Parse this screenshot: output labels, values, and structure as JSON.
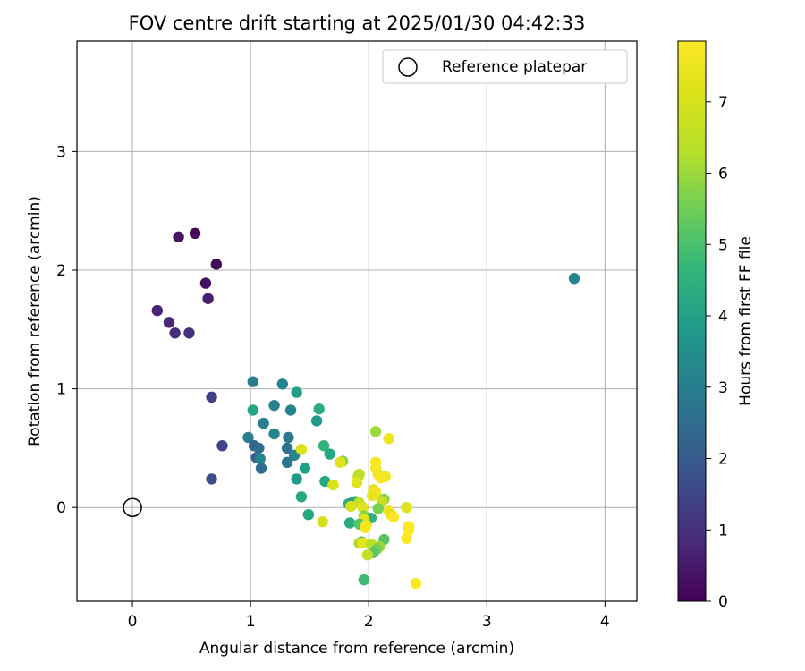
{
  "chart_data": {
    "type": "scatter",
    "title": "FOV centre drift starting at 2025/01/30 04:42:33",
    "xlabel": "Angular distance from reference (arcmin)",
    "ylabel": "Rotation from reference (arcmin)",
    "xlim": [
      -0.47,
      4.27
    ],
    "ylim": [
      -0.79,
      3.93
    ],
    "xticks": [
      0,
      1,
      2,
      3,
      4
    ],
    "yticks": [
      0,
      1,
      2,
      3
    ],
    "grid": true,
    "legend": {
      "placement": "top-right",
      "entries": [
        "Reference platepar"
      ]
    },
    "reference_point": {
      "name": "Reference platepar",
      "x": 0,
      "y": 0
    },
    "colorbar": {
      "label": "Hours from first FF file",
      "colormap": "viridis",
      "min": 0,
      "max": 7.85,
      "ticks": [
        0,
        1,
        2,
        3,
        4,
        5,
        6,
        7
      ]
    },
    "points": [
      {
        "x": 0.53,
        "y": 2.31,
        "c": 0.1
      },
      {
        "x": 0.39,
        "y": 2.28,
        "c": 0.4
      },
      {
        "x": 0.71,
        "y": 2.05,
        "c": 0.2
      },
      {
        "x": 0.62,
        "y": 1.89,
        "c": 0.3
      },
      {
        "x": 0.64,
        "y": 1.76,
        "c": 0.6
      },
      {
        "x": 0.21,
        "y": 1.66,
        "c": 0.7
      },
      {
        "x": 0.31,
        "y": 1.56,
        "c": 0.8
      },
      {
        "x": 0.36,
        "y": 1.47,
        "c": 0.9
      },
      {
        "x": 0.48,
        "y": 1.47,
        "c": 1.0
      },
      {
        "x": 0.67,
        "y": 0.93,
        "c": 1.4
      },
      {
        "x": 0.76,
        "y": 0.52,
        "c": 1.5
      },
      {
        "x": 0.67,
        "y": 0.24,
        "c": 1.7
      },
      {
        "x": 3.74,
        "y": 1.93,
        "c": 3.2
      },
      {
        "x": 1.02,
        "y": 1.06,
        "c": 3.0
      },
      {
        "x": 1.27,
        "y": 1.04,
        "c": 3.2
      },
      {
        "x": 1.39,
        "y": 0.97,
        "c": 4.0
      },
      {
        "x": 1.2,
        "y": 0.86,
        "c": 3.1
      },
      {
        "x": 1.34,
        "y": 0.82,
        "c": 3.2
      },
      {
        "x": 1.02,
        "y": 0.82,
        "c": 4.1
      },
      {
        "x": 1.58,
        "y": 0.83,
        "c": 4.4
      },
      {
        "x": 1.56,
        "y": 0.73,
        "c": 3.8
      },
      {
        "x": 1.11,
        "y": 0.71,
        "c": 3.0
      },
      {
        "x": 1.2,
        "y": 0.62,
        "c": 3.2
      },
      {
        "x": 0.98,
        "y": 0.59,
        "c": 3.0
      },
      {
        "x": 1.32,
        "y": 0.59,
        "c": 2.8
      },
      {
        "x": 1.03,
        "y": 0.52,
        "c": 2.3
      },
      {
        "x": 1.07,
        "y": 0.5,
        "c": 2.5
      },
      {
        "x": 1.31,
        "y": 0.5,
        "c": 2.6
      },
      {
        "x": 1.37,
        "y": 0.44,
        "c": 3.2
      },
      {
        "x": 1.05,
        "y": 0.42,
        "c": 2.1
      },
      {
        "x": 1.08,
        "y": 0.41,
        "c": 3.2
      },
      {
        "x": 1.31,
        "y": 0.38,
        "c": 2.8
      },
      {
        "x": 1.09,
        "y": 0.33,
        "c": 2.5
      },
      {
        "x": 1.46,
        "y": 0.33,
        "c": 4.0
      },
      {
        "x": 1.39,
        "y": 0.24,
        "c": 3.8
      },
      {
        "x": 1.43,
        "y": 0.09,
        "c": 4.2
      },
      {
        "x": 1.49,
        "y": -0.06,
        "c": 4.2
      },
      {
        "x": 1.62,
        "y": 0.52,
        "c": 4.6
      },
      {
        "x": 1.67,
        "y": 0.45,
        "c": 4.2
      },
      {
        "x": 1.78,
        "y": 0.39,
        "c": 5.8
      },
      {
        "x": 1.63,
        "y": 0.22,
        "c": 4.2
      },
      {
        "x": 1.43,
        "y": 0.49,
        "c": 7.1
      },
      {
        "x": 1.76,
        "y": 0.38,
        "c": 7.2
      },
      {
        "x": 1.7,
        "y": 0.19,
        "c": 7.1
      },
      {
        "x": 1.61,
        "y": -0.12,
        "c": 7.0
      },
      {
        "x": 1.91,
        "y": 0.26,
        "c": 6.7
      },
      {
        "x": 1.92,
        "y": 0.28,
        "c": 6.4
      },
      {
        "x": 1.9,
        "y": 0.21,
        "c": 7.2
      },
      {
        "x": 2.06,
        "y": 0.64,
        "c": 6.0
      },
      {
        "x": 2.17,
        "y": 0.58,
        "c": 7.5
      },
      {
        "x": 2.06,
        "y": 0.38,
        "c": 7.7
      },
      {
        "x": 2.06,
        "y": 0.33,
        "c": 7.7
      },
      {
        "x": 2.08,
        "y": 0.28,
        "c": 7.6
      },
      {
        "x": 2.14,
        "y": 0.26,
        "c": 7.5
      },
      {
        "x": 2.1,
        "y": 0.25,
        "c": 7.7
      },
      {
        "x": 2.04,
        "y": 0.15,
        "c": 7.3
      },
      {
        "x": 2.06,
        "y": 0.13,
        "c": 7.6
      },
      {
        "x": 2.03,
        "y": 0.1,
        "c": 7.4
      },
      {
        "x": 2.13,
        "y": 0.07,
        "c": 5.8
      },
      {
        "x": 2.11,
        "y": 0.05,
        "c": 6.7
      },
      {
        "x": 1.83,
        "y": 0.03,
        "c": 4.4
      },
      {
        "x": 1.86,
        "y": 0.04,
        "c": 4.0
      },
      {
        "x": 1.89,
        "y": 0.05,
        "c": 4.4
      },
      {
        "x": 1.92,
        "y": 0.04,
        "c": 6.6
      },
      {
        "x": 1.85,
        "y": 0.01,
        "c": 7.0
      },
      {
        "x": 1.95,
        "y": 0.0,
        "c": 7.3
      },
      {
        "x": 2.08,
        "y": -0.01,
        "c": 5.6
      },
      {
        "x": 2.17,
        "y": -0.03,
        "c": 7.6
      },
      {
        "x": 2.19,
        "y": -0.06,
        "c": 7.3
      },
      {
        "x": 2.21,
        "y": -0.08,
        "c": 7.8
      },
      {
        "x": 2.32,
        "y": 0.0,
        "c": 7.2
      },
      {
        "x": 1.96,
        "y": -0.07,
        "c": 5.8
      },
      {
        "x": 2.02,
        "y": -0.09,
        "c": 4.6
      },
      {
        "x": 1.96,
        "y": -0.1,
        "c": 7.3
      },
      {
        "x": 1.84,
        "y": -0.13,
        "c": 4.3
      },
      {
        "x": 1.92,
        "y": -0.14,
        "c": 5.2
      },
      {
        "x": 1.98,
        "y": -0.15,
        "c": 7.5
      },
      {
        "x": 1.97,
        "y": -0.17,
        "c": 7.7
      },
      {
        "x": 2.34,
        "y": -0.16,
        "c": 7.8
      },
      {
        "x": 2.34,
        "y": -0.19,
        "c": 7.8
      },
      {
        "x": 2.32,
        "y": -0.26,
        "c": 7.8
      },
      {
        "x": 2.13,
        "y": -0.27,
        "c": 5.2
      },
      {
        "x": 1.94,
        "y": -0.29,
        "c": 5.0
      },
      {
        "x": 1.92,
        "y": -0.3,
        "c": 6.2
      },
      {
        "x": 1.95,
        "y": -0.3,
        "c": 7.4
      },
      {
        "x": 2.02,
        "y": -0.31,
        "c": 6.4
      },
      {
        "x": 2.09,
        "y": -0.33,
        "c": 6.0
      },
      {
        "x": 2.07,
        "y": -0.35,
        "c": 5.6
      },
      {
        "x": 2.04,
        "y": -0.38,
        "c": 5.2
      },
      {
        "x": 1.99,
        "y": -0.4,
        "c": 6.6
      },
      {
        "x": 1.96,
        "y": -0.61,
        "c": 4.8
      },
      {
        "x": 2.4,
        "y": -0.64,
        "c": 7.8
      }
    ]
  }
}
